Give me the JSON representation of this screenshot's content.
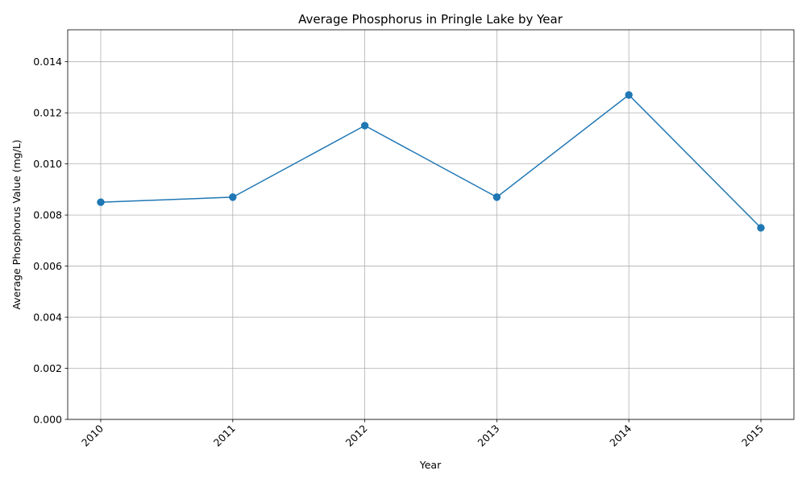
{
  "chart_data": {
    "type": "line",
    "title": "Average Phosphorus in Pringle Lake by Year",
    "xlabel": "Year",
    "ylabel": "Average Phosphorus Value (mg/L)",
    "categories": [
      "2010",
      "2011",
      "2012",
      "2013",
      "2014",
      "2015"
    ],
    "series": [
      {
        "values": [
          0.0085,
          0.0087,
          0.0115,
          0.0087,
          0.0127,
          0.0075
        ],
        "color": "#1f77b4",
        "marker": "circle"
      }
    ],
    "ylim": [
      0,
      0.01525
    ],
    "yticks": [
      "0.000",
      "0.002",
      "0.004",
      "0.006",
      "0.008",
      "0.010",
      "0.012",
      "0.014"
    ],
    "ytick_values": [
      0,
      0.002,
      0.004,
      0.006,
      0.008,
      0.01,
      0.012,
      0.014
    ],
    "grid": true,
    "x_tick_rotation_deg": 45
  }
}
